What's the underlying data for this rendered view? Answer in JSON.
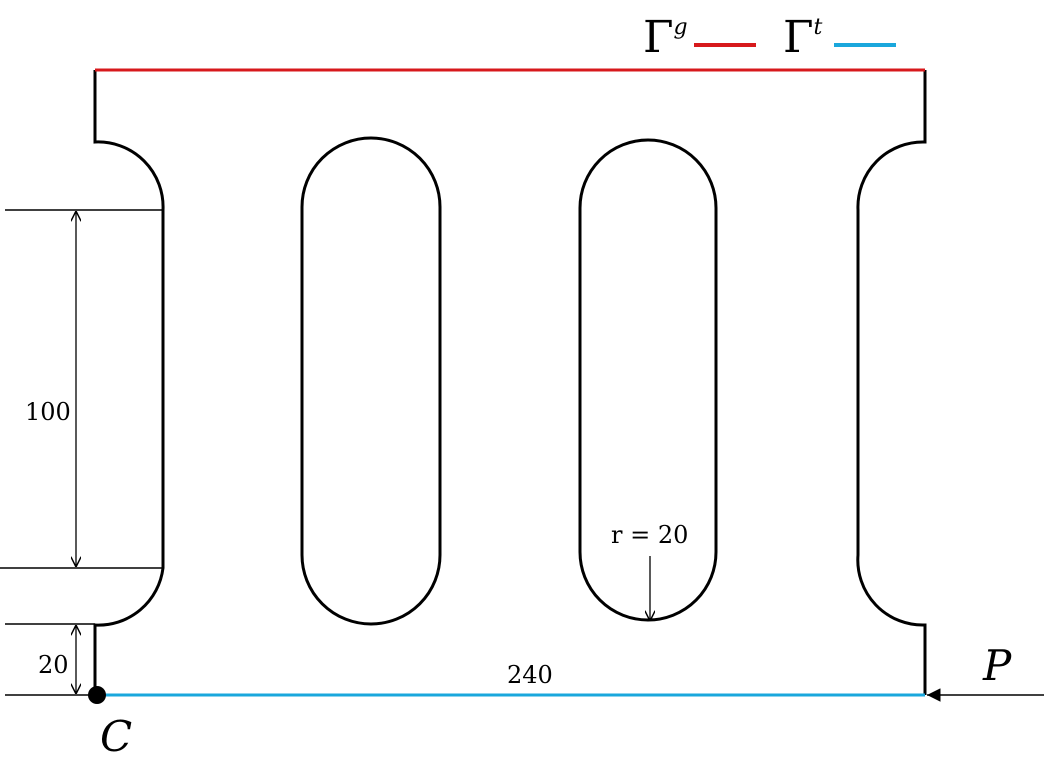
{
  "legend": {
    "dirichlet": {
      "symbol": "Γ",
      "superscript": "g",
      "color": "#d7191c"
    },
    "neumann": {
      "symbol": "Γ",
      "superscript": "t",
      "color": "#1aa7dc"
    }
  },
  "dimensions": {
    "vertical_height": "100",
    "base_height": "20",
    "width": "240",
    "radius": "r = 20"
  },
  "labels": {
    "point": "C",
    "load": "P"
  },
  "colors": {
    "outline": "#000000",
    "dirichlet": "#d7191c",
    "neumann": "#1aa7dc"
  }
}
